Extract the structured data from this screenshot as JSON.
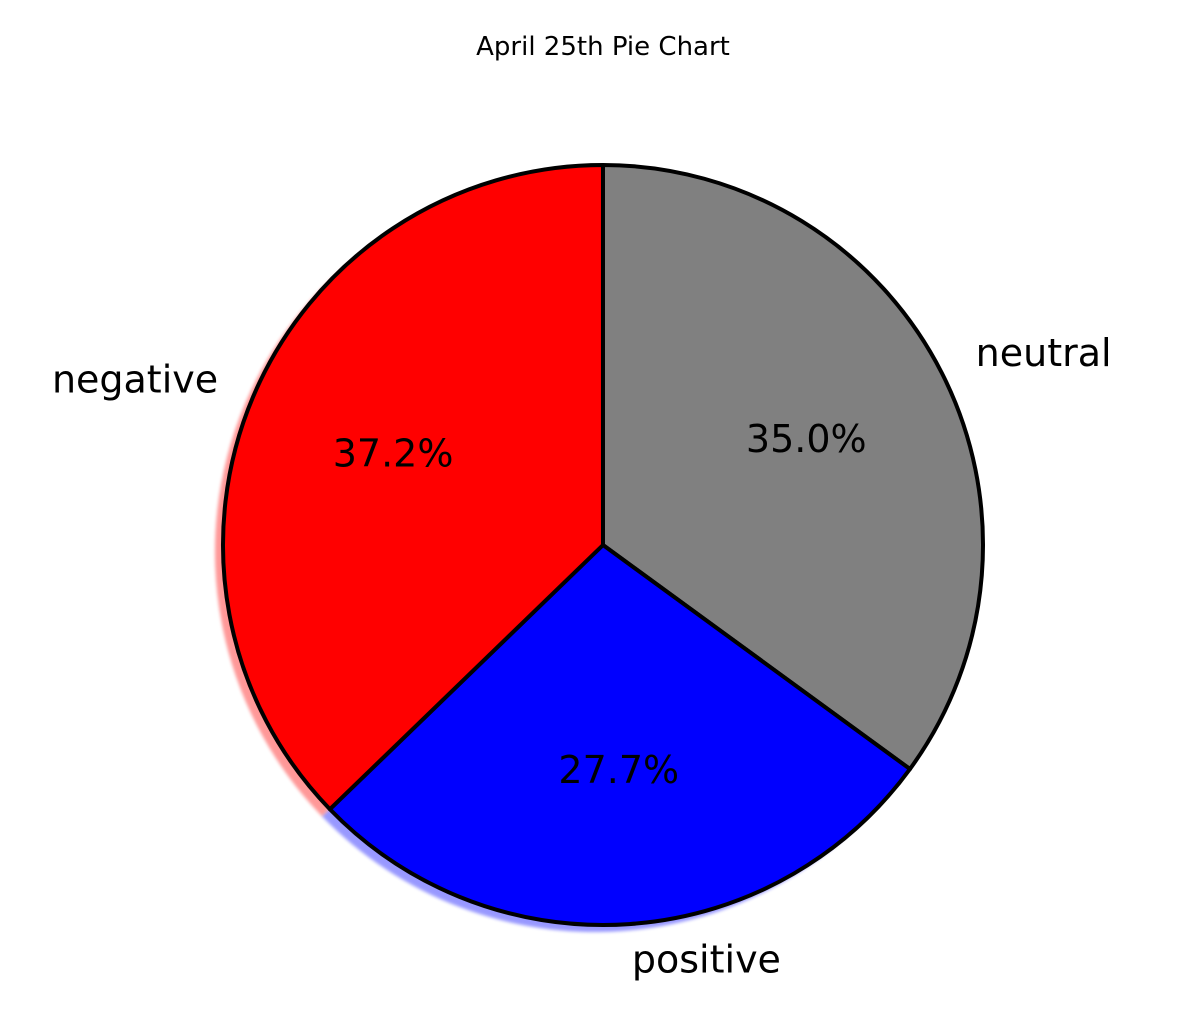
{
  "chart_data": {
    "type": "pie",
    "title": "April 25th Pie Chart",
    "start_angle_deg": 90,
    "direction": "clockwise",
    "shadow": true,
    "slices": [
      {
        "label": "neutral",
        "value": 35.0,
        "pct_label": "35.0%",
        "color": "#808080"
      },
      {
        "label": "positive",
        "value": 27.7,
        "pct_label": "27.7%",
        "color": "#0000ff"
      },
      {
        "label": "negative",
        "value": 37.2,
        "pct_label": "37.2%",
        "color": "#ff0000"
      }
    ],
    "edge_color": "#000000"
  }
}
